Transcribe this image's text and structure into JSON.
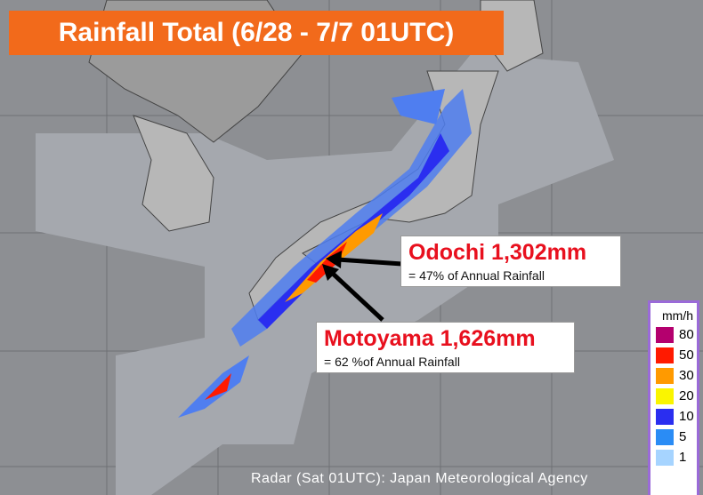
{
  "title": "Rainfall Total (6/28 - 7/7 01UTC)",
  "annotations": [
    {
      "name": "Odochi 1,302mm",
      "note": "= 47% of Annual Rainfall"
    },
    {
      "name": "Motoyama 1,626mm",
      "note": "= 62 %of Annual Rainfall"
    }
  ],
  "legend": {
    "title": "mm/h",
    "items": [
      {
        "label": "80",
        "color": "#b4006e"
      },
      {
        "label": "50",
        "color": "#ff1a00"
      },
      {
        "label": "30",
        "color": "#ff9a00"
      },
      {
        "label": "20",
        "color": "#faf500"
      },
      {
        "label": "10",
        "color": "#2a2ef0"
      },
      {
        "label": "5",
        "color": "#2a8cf5"
      },
      {
        "label": "1",
        "color": "#a6d4ff"
      }
    ]
  },
  "credit": "Radar (Sat 01UTC): Japan Meteorological Agency"
}
